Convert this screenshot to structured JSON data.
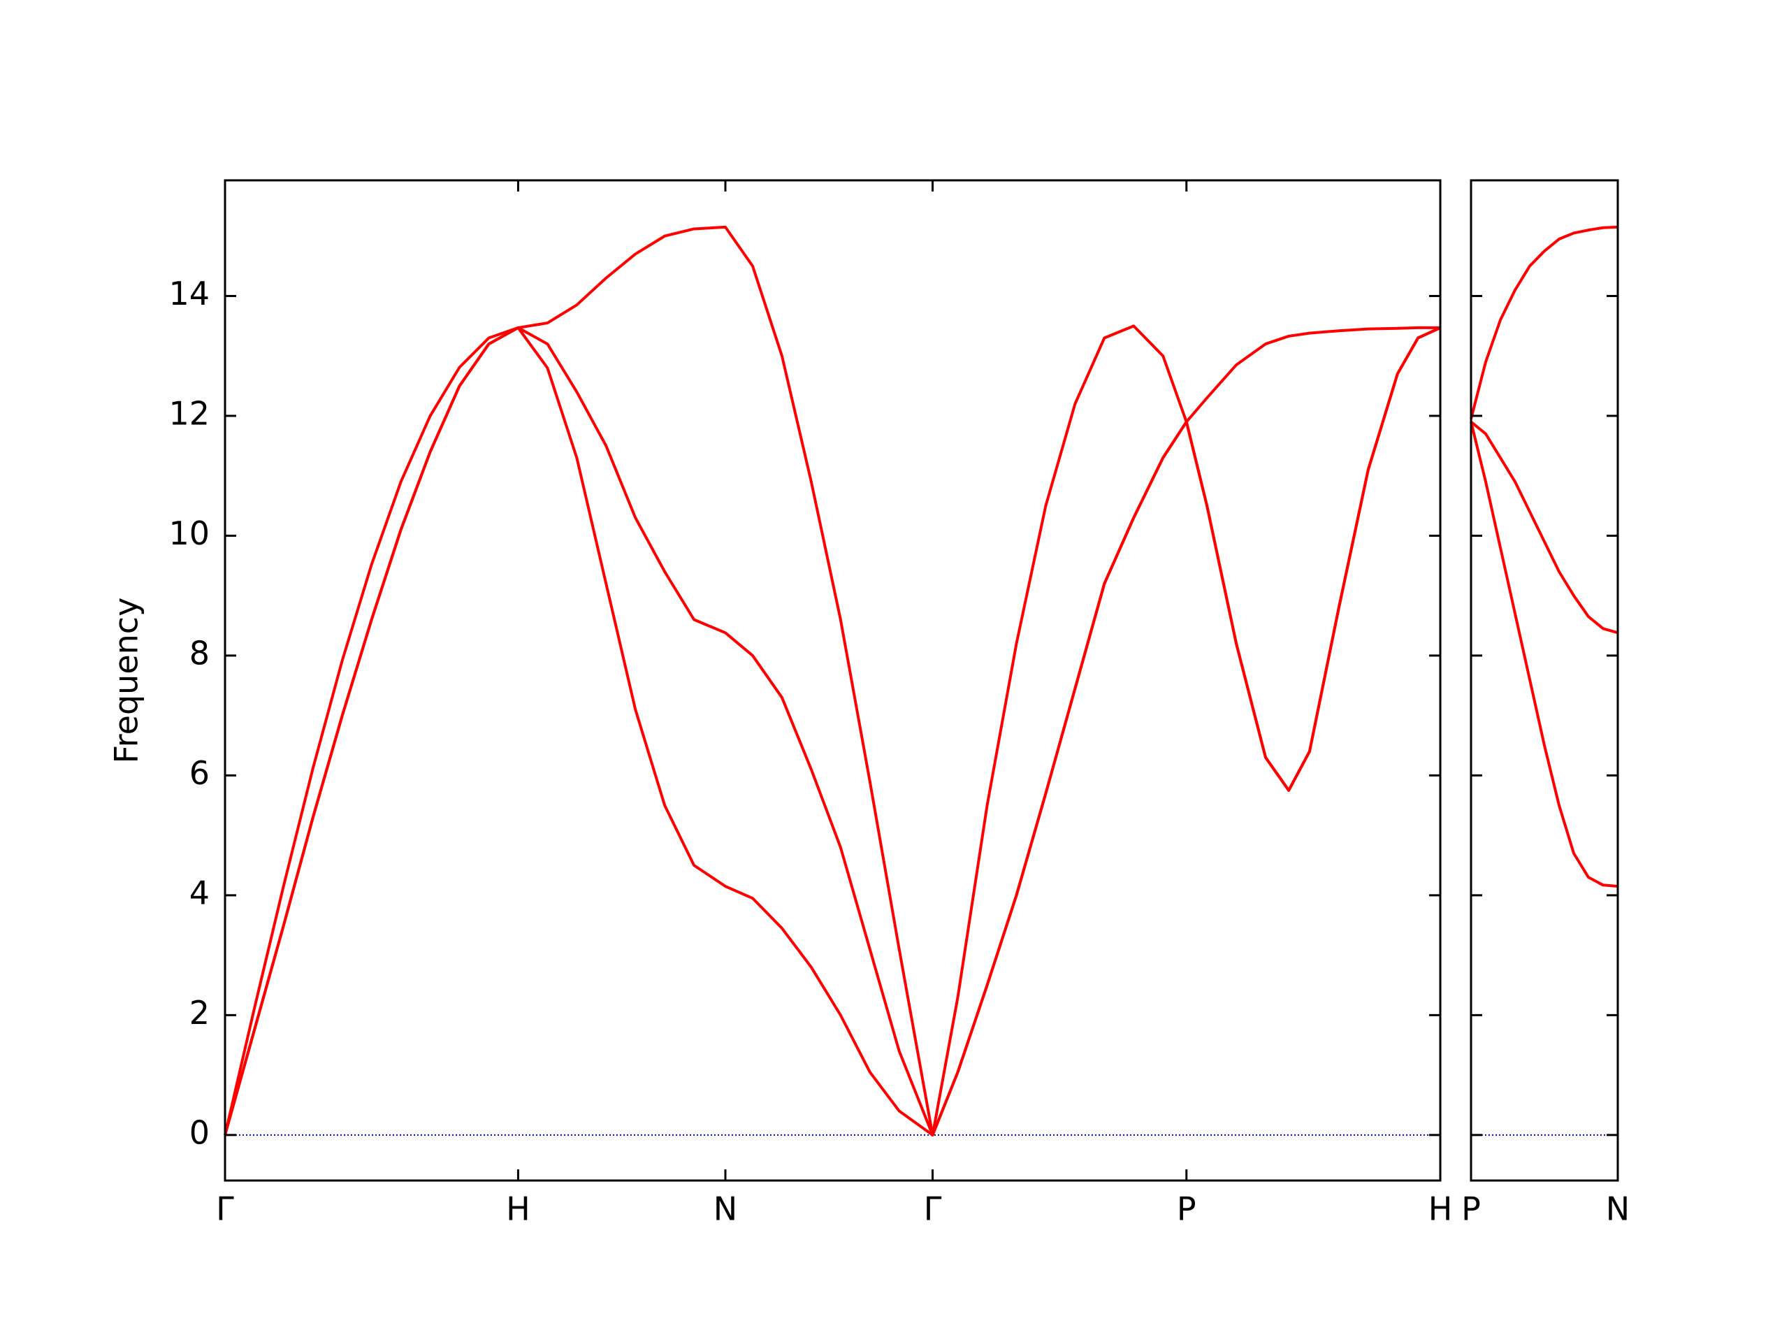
{
  "chart_data": [
    {
      "type": "line",
      "ylabel": "Frequency",
      "x": [
        0,
        0.1,
        0.2,
        0.3,
        0.4,
        0.5,
        0.6,
        0.7,
        0.8,
        0.9,
        1.0,
        1.1,
        1.2,
        1.3,
        1.4,
        1.5,
        1.6,
        1.707,
        1.8,
        1.9,
        2.0,
        2.1,
        2.2,
        2.3,
        2.414,
        2.5,
        2.6,
        2.7,
        2.8,
        2.9,
        3.0,
        3.1,
        3.2,
        3.28,
        3.35,
        3.45,
        3.55,
        3.629,
        3.7,
        3.8,
        3.9,
        4.0,
        4.07,
        4.146
      ],
      "series": [
        {
          "color": "#ff0000",
          "values": [
            0,
            1.75,
            3.5,
            5.3,
            7.0,
            8.6,
            10.1,
            11.4,
            12.5,
            13.2,
            13.47,
            12.8,
            11.3,
            9.2,
            7.1,
            5.5,
            4.5,
            4.15,
            3.95,
            3.45,
            2.8,
            2.0,
            1.05,
            0.4,
            0,
            1.05,
            2.5,
            4.0,
            5.7,
            7.45,
            9.2,
            10.3,
            11.3,
            11.9,
            10.5,
            8.2,
            6.3,
            5.75,
            6.4,
            8.8,
            11.1,
            12.7,
            13.3,
            13.47
          ]
        },
        {
          "color": "#ff0000",
          "values": [
            0,
            1.75,
            3.5,
            5.3,
            7.0,
            8.6,
            10.1,
            11.4,
            12.5,
            13.2,
            13.47,
            13.2,
            12.4,
            11.5,
            10.3,
            9.4,
            8.6,
            8.38,
            8.0,
            7.3,
            6.1,
            4.8,
            3.1,
            1.4,
            0,
            1.05,
            2.5,
            4.0,
            5.7,
            7.45,
            9.2,
            10.3,
            11.3,
            11.9,
            10.5,
            8.2,
            6.3,
            5.75,
            6.4,
            8.8,
            11.1,
            12.7,
            13.3,
            13.47
          ]
        },
        {
          "color": "#ff0000",
          "values": [
            0,
            2.11,
            4.16,
            6.12,
            7.92,
            9.52,
            10.9,
            12.0,
            12.81,
            13.3,
            13.47,
            13.55,
            13.85,
            14.3,
            14.7,
            15.0,
            15.12,
            15.15,
            14.5,
            13.0,
            10.9,
            8.6,
            5.9,
            3.1,
            0,
            2.3,
            5.5,
            8.2,
            10.5,
            12.2,
            13.3,
            13.5,
            13.0,
            11.9,
            12.3,
            12.85,
            13.2,
            13.33,
            13.38,
            13.42,
            13.45,
            13.46,
            13.47,
            13.47
          ]
        }
      ],
      "xlim": [
        0,
        4.146
      ],
      "xticks": [
        {
          "value": 0,
          "label": "Γ"
        },
        {
          "value": 1,
          "label": "H"
        },
        {
          "value": 1.707,
          "label": "N"
        },
        {
          "value": 2.414,
          "label": "Γ"
        },
        {
          "value": 3.28,
          "label": "P"
        },
        {
          "value": 4.146,
          "label": "H"
        }
      ],
      "ylim": [
        -0.76,
        15.93
      ],
      "yticks": [
        0,
        2,
        4,
        6,
        8,
        10,
        12,
        14
      ],
      "ytick_labels": true,
      "zero_line": {
        "value": 0,
        "color": "#0000cc"
      }
    },
    {
      "type": "line",
      "x": [
        4.146,
        4.196,
        4.246,
        4.296,
        4.346,
        4.396,
        4.446,
        4.496,
        4.546,
        4.596,
        4.646
      ],
      "series": [
        {
          "color": "#ff0000",
          "values": [
            11.9,
            10.9,
            9.8,
            8.7,
            7.6,
            6.5,
            5.5,
            4.7,
            4.3,
            4.17,
            4.15
          ]
        },
        {
          "color": "#ff0000",
          "values": [
            11.9,
            11.7,
            11.3,
            10.9,
            10.4,
            9.9,
            9.4,
            9.0,
            8.65,
            8.45,
            8.38
          ]
        },
        {
          "color": "#ff0000",
          "values": [
            11.95,
            12.9,
            13.6,
            14.1,
            14.5,
            14.75,
            14.95,
            15.05,
            15.1,
            15.14,
            15.15
          ]
        }
      ],
      "xlim": [
        4.146,
        4.646
      ],
      "xticks": [
        {
          "value": 4.146,
          "label": "P"
        },
        {
          "value": 4.646,
          "label": "N"
        }
      ],
      "ylim": [
        -0.76,
        15.93
      ],
      "yticks": [
        0,
        2,
        4,
        6,
        8,
        10,
        12,
        14
      ],
      "ytick_labels": false,
      "zero_line": {
        "value": 0,
        "color": "#0000cc"
      }
    }
  ]
}
